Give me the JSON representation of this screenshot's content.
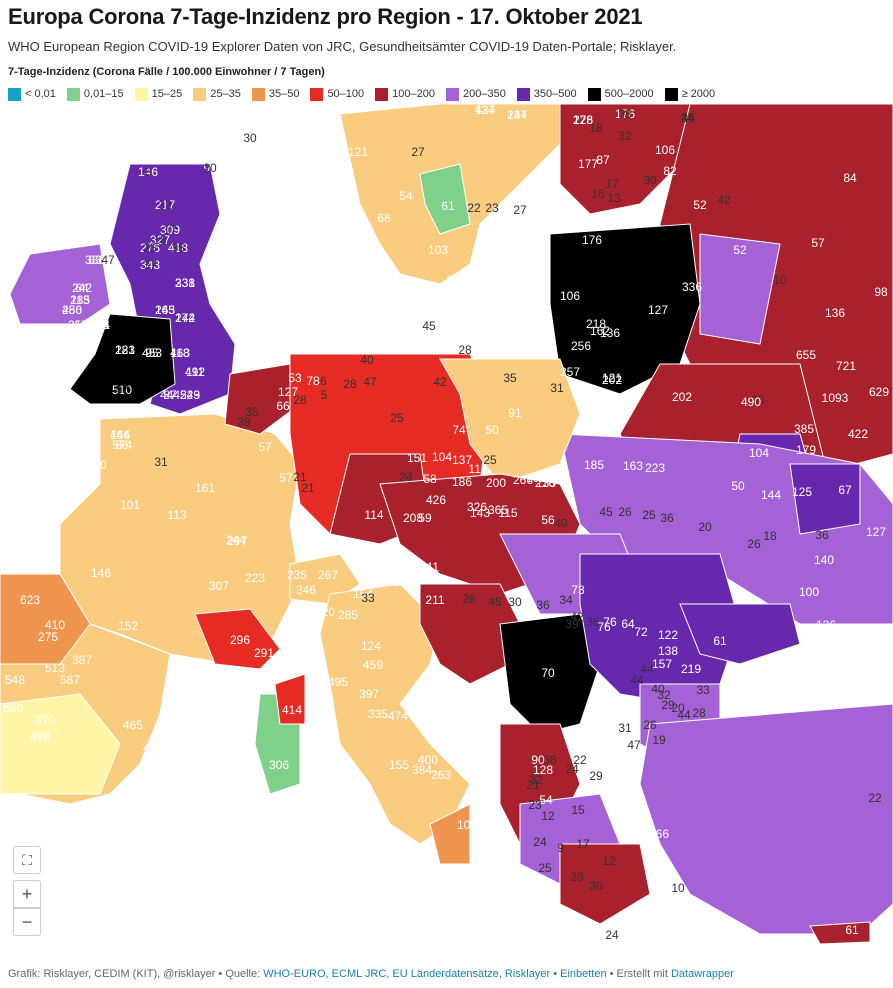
{
  "title": "Europa Corona 7-Tage-Inzidenz pro Region - 17. Oktober 2021",
  "subtitle": "WHO European Region COVID-19 Explorer Daten von JRC, Gesundheitsämter COVID-19  Daten-Portale; Risklayer.",
  "legend_title": "7-Tage-Inzidenz (Corona Fälle / 100.000 Einwohner / 7 Tagen)",
  "legend": [
    {
      "label": "< 0,01",
      "color": "#1a9fc9"
    },
    {
      "label": "0,01–15",
      "color": "#7fd08a"
    },
    {
      "label": "15–25",
      "color": "#fef6a6"
    },
    {
      "label": "25–35",
      "color": "#f9cc80"
    },
    {
      "label": "35–50",
      "color": "#ef9550"
    },
    {
      "label": "50–100",
      "color": "#e52b23"
    },
    {
      "label": "100–200",
      "color": "#a8212c"
    },
    {
      "label": "200–350",
      "color": "#a561d6"
    },
    {
      "label": "350–500",
      "color": "#6828ad"
    },
    {
      "label": "500–2000",
      "color": "#000000"
    },
    {
      "label": "≥ 2000",
      "color": "#000000"
    }
  ],
  "map_labels": [
    "86",
    "95",
    "146",
    "217",
    "309",
    "327",
    "276",
    "418",
    "343",
    "303",
    "334",
    "242",
    "285",
    "480",
    "217",
    "264",
    "238",
    "245",
    "274",
    "283",
    "453",
    "463",
    "492",
    "510",
    "444",
    "523",
    "466",
    "574",
    "437",
    "237",
    "228",
    "176",
    "35",
    "18",
    "32",
    "106",
    "121",
    "27",
    "87",
    "177",
    "17",
    "30",
    "16",
    "82",
    "113",
    "68",
    "54",
    "61",
    "22",
    "23",
    "27",
    "59",
    "118",
    "13",
    "52",
    "84",
    "42",
    "57",
    "52",
    "10",
    "98",
    "136",
    "336",
    "176",
    "106",
    "127",
    "218",
    "162",
    "136",
    "256",
    "257",
    "202",
    "121",
    "35",
    "655",
    "721",
    "1093",
    "629",
    "385",
    "422",
    "490",
    "202",
    "489",
    "532",
    "568",
    "217",
    "103",
    "74",
    "193",
    "176",
    "178",
    "161",
    "150",
    "156",
    "45",
    "40",
    "47",
    "35",
    "31",
    "28",
    "42",
    "25",
    "28",
    "16",
    "5",
    "53",
    "78",
    "127",
    "28",
    "66",
    "35",
    "39",
    "54",
    "57",
    "91",
    "50",
    "74",
    "25",
    "151",
    "104",
    "137",
    "112",
    "135",
    "101",
    "185",
    "163",
    "223",
    "104",
    "179",
    "50",
    "67",
    "125",
    "144",
    "57",
    "21",
    "21",
    "24",
    "58",
    "186",
    "200",
    "266",
    "216",
    "426",
    "326",
    "143",
    "365",
    "115",
    "208",
    "114",
    "59",
    "56",
    "40",
    "45",
    "26",
    "25",
    "36",
    "20",
    "18",
    "26",
    "36",
    "127",
    "140",
    "100",
    "136",
    "60",
    "31",
    "101",
    "113",
    "244",
    "161",
    "297",
    "307",
    "146",
    "152",
    "296",
    "291",
    "223",
    "235",
    "267",
    "96",
    "55",
    "141",
    "211",
    "154",
    "124",
    "215",
    "346",
    "420",
    "285",
    "33",
    "28",
    "45",
    "30",
    "36",
    "73",
    "34",
    "42",
    "36",
    "39",
    "76",
    "64",
    "70",
    "76",
    "72",
    "122",
    "61",
    "138",
    "157",
    "219",
    "44",
    "44",
    "40",
    "33",
    "32",
    "29",
    "20",
    "28",
    "44",
    "26",
    "31",
    "19",
    "47",
    "90",
    "128",
    "465",
    "387",
    "513",
    "587",
    "370",
    "548",
    "580",
    "498",
    "623",
    "410",
    "275",
    "414",
    "306",
    "403",
    "335",
    "459",
    "495",
    "397",
    "474",
    "344",
    "384",
    "155",
    "400",
    "263",
    "142",
    "100",
    "257",
    "166",
    "10",
    "24",
    "61",
    "22",
    "29",
    "15",
    "17",
    "9",
    "23",
    "25",
    "30",
    "12",
    "24",
    "54",
    "12",
    "23",
    "32",
    "21",
    "38",
    "22",
    "24",
    "30",
    "20",
    "6",
    "32",
    "17",
    "18",
    "25",
    "35",
    "37",
    "47",
    "83",
    "64",
    "113",
    "256",
    "258",
    "291",
    "331",
    "163",
    "142",
    "121",
    "95",
    "118",
    "111",
    "47",
    "87",
    "249",
    "144",
    "86",
    "124",
    "144",
    "176",
    "38",
    "44"
  ],
  "controls": {
    "fullscreen": "⛶",
    "zoom_in": "+",
    "zoom_out": "−"
  },
  "footer": {
    "prefix": "Grafik: Risklayer, CEDIM (KIT), @risklayer • Quelle: ",
    "sources": "WHO-EURO, ECML JRC, EU Länderdatensätze, Risklayer",
    "sep1": " • ",
    "embed": "Einbetten",
    "sep2": " • Erstellt mit ",
    "tool": "Datawrapper"
  }
}
